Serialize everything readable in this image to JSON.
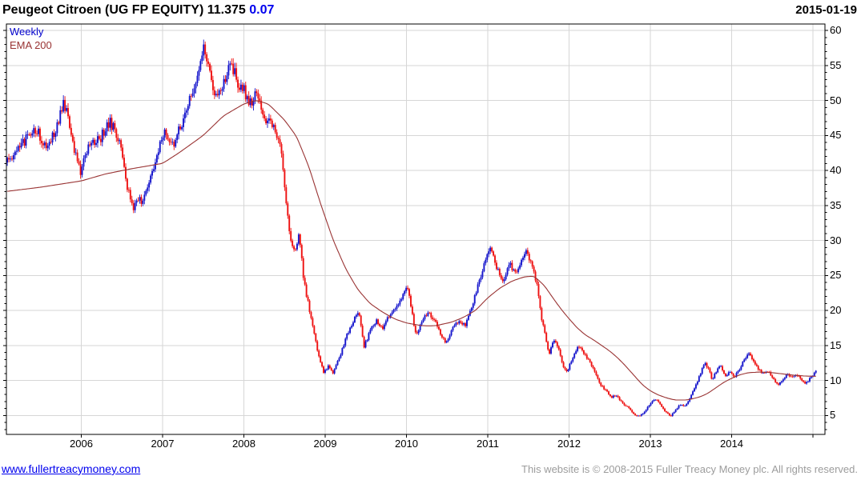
{
  "header": {
    "instrument": "Peugeot Citroen (UG FP EQUITY)",
    "last_price": "11.375",
    "change": "0.07",
    "date": "2015-01-19"
  },
  "legend": {
    "timeframe": "Weekly",
    "overlay": "EMA 200"
  },
  "footer": {
    "link": "www.fullertreacymoney.com",
    "copyright": "This website is © 2008-2015 Fuller Treacy Money plc. All rights reserved."
  },
  "chart_data": {
    "type": "candlestick",
    "title": "Peugeot Citroen (UG FP EQUITY)",
    "timeframe": "Weekly",
    "overlay": "EMA 200",
    "last_close": 11.375,
    "x_range": [
      2005.07,
      2015.1
    ],
    "y_gridline_values": [
      5,
      10,
      15,
      20,
      25,
      30,
      35,
      40,
      45,
      50,
      55,
      60
    ],
    "x_tick_years": [
      2006,
      2007,
      2008,
      2009,
      2010,
      2011,
      2012,
      2013,
      2014,
      2015
    ],
    "x_tick_labels": [
      "2006",
      "2007",
      "2008",
      "2009",
      "2010",
      "2011",
      "2012",
      "2013",
      "2014",
      ""
    ],
    "grid_on": true,
    "colors": {
      "up_candle": "#1414cc",
      "down_candle": "#ee1111",
      "ema_line": "#993333",
      "grid": "#d6d6d6",
      "frame": "#000000"
    },
    "price_anchors": [
      [
        2005.08,
        41.0
      ],
      [
        2005.25,
        43.5
      ],
      [
        2005.44,
        46.0
      ],
      [
        2005.57,
        43.2
      ],
      [
        2005.69,
        46.0
      ],
      [
        2005.79,
        49.8
      ],
      [
        2005.89,
        44.0
      ],
      [
        2005.99,
        39.8
      ],
      [
        2006.1,
        43.5
      ],
      [
        2006.23,
        44.5
      ],
      [
        2006.35,
        47.0
      ],
      [
        2006.46,
        44.5
      ],
      [
        2006.56,
        38.0
      ],
      [
        2006.64,
        34.2
      ],
      [
        2006.69,
        36.5
      ],
      [
        2006.75,
        35.0
      ],
      [
        2006.87,
        40.0
      ],
      [
        2007.02,
        45.5
      ],
      [
        2007.12,
        43.5
      ],
      [
        2007.25,
        47.0
      ],
      [
        2007.34,
        50.5
      ],
      [
        2007.43,
        53.5
      ],
      [
        2007.51,
        58.0
      ],
      [
        2007.58,
        54.0
      ],
      [
        2007.66,
        50.5
      ],
      [
        2007.76,
        53.0
      ],
      [
        2007.84,
        55.8
      ],
      [
        2007.92,
        52.5
      ],
      [
        2008.0,
        51.5
      ],
      [
        2008.07,
        49.5
      ],
      [
        2008.15,
        51.0
      ],
      [
        2008.26,
        47.5
      ],
      [
        2008.35,
        46.5
      ],
      [
        2008.45,
        43.0
      ],
      [
        2008.47,
        42.0
      ],
      [
        2008.51,
        36.0
      ],
      [
        2008.57,
        30.0
      ],
      [
        2008.63,
        28.0
      ],
      [
        2008.68,
        31.0
      ],
      [
        2008.74,
        24.0
      ],
      [
        2008.8,
        20.5
      ],
      [
        2008.86,
        17.0
      ],
      [
        2008.92,
        13.5
      ],
      [
        2008.98,
        11.2
      ],
      [
        2009.04,
        12.0
      ],
      [
        2009.1,
        11.0
      ],
      [
        2009.18,
        13.5
      ],
      [
        2009.27,
        16.5
      ],
      [
        2009.34,
        18.3
      ],
      [
        2009.41,
        19.8
      ],
      [
        2009.48,
        14.8
      ],
      [
        2009.55,
        17.0
      ],
      [
        2009.63,
        18.5
      ],
      [
        2009.71,
        17.6
      ],
      [
        2009.8,
        19.5
      ],
      [
        2009.88,
        20.5
      ],
      [
        2009.95,
        22.0
      ],
      [
        2010.01,
        23.6
      ],
      [
        2010.07,
        19.5
      ],
      [
        2010.12,
        16.3
      ],
      [
        2010.19,
        18.5
      ],
      [
        2010.27,
        19.8
      ],
      [
        2010.35,
        18.5
      ],
      [
        2010.43,
        16.3
      ],
      [
        2010.49,
        15.3
      ],
      [
        2010.57,
        17.5
      ],
      [
        2010.65,
        18.7
      ],
      [
        2010.72,
        17.8
      ],
      [
        2010.8,
        20.3
      ],
      [
        2010.88,
        23.5
      ],
      [
        2010.95,
        26.5
      ],
      [
        2011.03,
        28.8
      ],
      [
        2011.11,
        26.0
      ],
      [
        2011.19,
        24.0
      ],
      [
        2011.27,
        26.5
      ],
      [
        2011.35,
        25.5
      ],
      [
        2011.42,
        27.5
      ],
      [
        2011.48,
        28.4
      ],
      [
        2011.55,
        26.5
      ],
      [
        2011.6,
        24.0
      ],
      [
        2011.66,
        19.0
      ],
      [
        2011.72,
        15.5
      ],
      [
        2011.76,
        13.8
      ],
      [
        2011.81,
        15.8
      ],
      [
        2011.86,
        14.8
      ],
      [
        2011.92,
        12.3
      ],
      [
        2011.97,
        11.2
      ],
      [
        2012.02,
        12.5
      ],
      [
        2012.08,
        14.3
      ],
      [
        2012.13,
        15.0
      ],
      [
        2012.19,
        13.8
      ],
      [
        2012.26,
        12.5
      ],
      [
        2012.33,
        10.8
      ],
      [
        2012.39,
        9.3
      ],
      [
        2012.45,
        8.6
      ],
      [
        2012.52,
        7.6
      ],
      [
        2012.58,
        7.9
      ],
      [
        2012.65,
        6.8
      ],
      [
        2012.72,
        6.2
      ],
      [
        2012.78,
        5.4
      ],
      [
        2012.84,
        4.8
      ],
      [
        2012.9,
        5.2
      ],
      [
        2012.95,
        5.9
      ],
      [
        2013.01,
        6.8
      ],
      [
        2013.07,
        7.4
      ],
      [
        2013.13,
        6.5
      ],
      [
        2013.18,
        5.6
      ],
      [
        2013.25,
        4.9
      ],
      [
        2013.32,
        6.0
      ],
      [
        2013.38,
        6.6
      ],
      [
        2013.43,
        6.3
      ],
      [
        2013.49,
        7.5
      ],
      [
        2013.55,
        9.0
      ],
      [
        2013.61,
        10.8
      ],
      [
        2013.67,
        12.6
      ],
      [
        2013.72,
        11.5
      ],
      [
        2013.76,
        10.0
      ],
      [
        2013.81,
        11.3
      ],
      [
        2013.86,
        12.4
      ],
      [
        2013.92,
        10.6
      ],
      [
        2013.98,
        11.2
      ],
      [
        2014.03,
        10.4
      ],
      [
        2014.09,
        11.5
      ],
      [
        2014.15,
        12.8
      ],
      [
        2014.21,
        14.0
      ],
      [
        2014.27,
        12.8
      ],
      [
        2014.33,
        11.5
      ],
      [
        2014.39,
        11.0
      ],
      [
        2014.45,
        11.4
      ],
      [
        2014.51,
        10.2
      ],
      [
        2014.57,
        9.2
      ],
      [
        2014.62,
        10.0
      ],
      [
        2014.68,
        10.8
      ],
      [
        2014.74,
        10.4
      ],
      [
        2014.8,
        10.9
      ],
      [
        2014.86,
        9.9
      ],
      [
        2014.91,
        9.6
      ],
      [
        2014.96,
        10.2
      ],
      [
        2015.01,
        10.9
      ],
      [
        2015.04,
        11.375
      ]
    ],
    "ema_anchors": [
      [
        2005.08,
        37.0
      ],
      [
        2005.5,
        37.6
      ],
      [
        2006.0,
        38.5
      ],
      [
        2006.3,
        39.5
      ],
      [
        2006.6,
        40.2
      ],
      [
        2007.0,
        41.0
      ],
      [
        2007.2,
        42.5
      ],
      [
        2007.5,
        45.0
      ],
      [
        2007.75,
        47.8
      ],
      [
        2008.0,
        49.5
      ],
      [
        2008.15,
        50.0
      ],
      [
        2008.3,
        49.5
      ],
      [
        2008.5,
        47.2
      ],
      [
        2008.65,
        44.8
      ],
      [
        2008.8,
        40.5
      ],
      [
        2008.95,
        35.0
      ],
      [
        2009.1,
        30.0
      ],
      [
        2009.25,
        26.0
      ],
      [
        2009.4,
        23.0
      ],
      [
        2009.55,
        21.0
      ],
      [
        2009.7,
        19.8
      ],
      [
        2009.85,
        18.8
      ],
      [
        2010.0,
        18.2
      ],
      [
        2010.2,
        17.8
      ],
      [
        2010.35,
        17.8
      ],
      [
        2010.55,
        18.3
      ],
      [
        2010.7,
        19.0
      ],
      [
        2010.85,
        20.0
      ],
      [
        2011.0,
        21.8
      ],
      [
        2011.15,
        23.2
      ],
      [
        2011.3,
        24.2
      ],
      [
        2011.45,
        24.8
      ],
      [
        2011.57,
        24.9
      ],
      [
        2011.7,
        23.5
      ],
      [
        2011.8,
        21.8
      ],
      [
        2011.9,
        20.2
      ],
      [
        2012.0,
        18.8
      ],
      [
        2012.1,
        17.5
      ],
      [
        2012.2,
        16.5
      ],
      [
        2012.3,
        15.8
      ],
      [
        2012.4,
        15.0
      ],
      [
        2012.5,
        14.2
      ],
      [
        2012.6,
        13.2
      ],
      [
        2012.7,
        12.0
      ],
      [
        2012.8,
        10.7
      ],
      [
        2012.9,
        9.4
      ],
      [
        2013.0,
        8.5
      ],
      [
        2013.1,
        7.9
      ],
      [
        2013.2,
        7.5
      ],
      [
        2013.3,
        7.2
      ],
      [
        2013.45,
        7.2
      ],
      [
        2013.6,
        7.6
      ],
      [
        2013.7,
        8.1
      ],
      [
        2013.8,
        8.9
      ],
      [
        2013.9,
        9.7
      ],
      [
        2014.0,
        10.3
      ],
      [
        2014.1,
        10.8
      ],
      [
        2014.2,
        11.1
      ],
      [
        2014.35,
        11.2
      ],
      [
        2014.5,
        11.1
      ],
      [
        2014.65,
        10.9
      ],
      [
        2014.8,
        10.7
      ],
      [
        2014.95,
        10.6
      ],
      [
        2015.07,
        10.6
      ]
    ]
  }
}
